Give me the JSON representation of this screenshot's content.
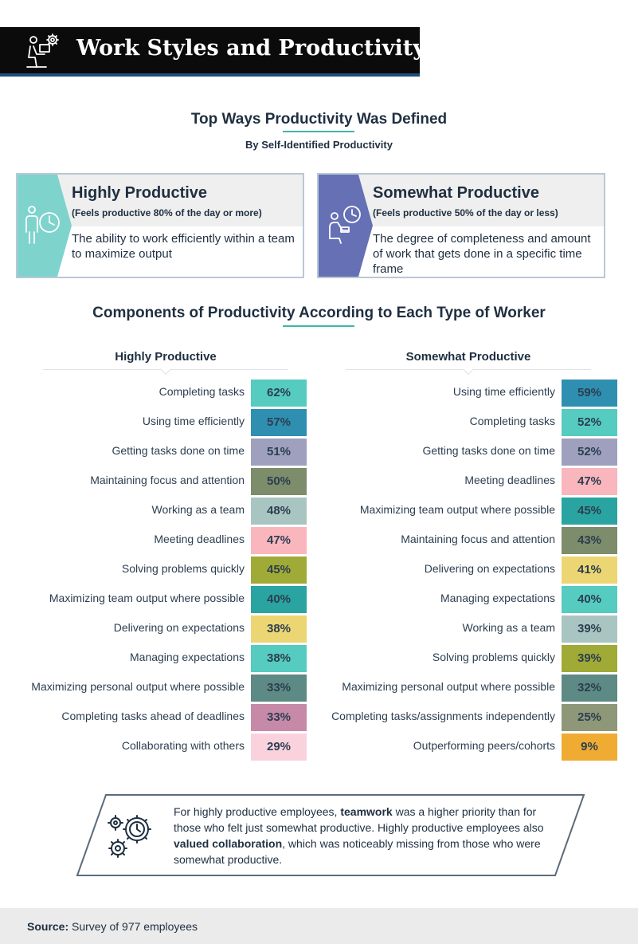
{
  "header": {
    "title": "Work Styles and Productivity"
  },
  "defined": {
    "title": "Top Ways Productivity Was Defined",
    "subtitle": "By Self-Identified Productivity",
    "cards": [
      {
        "title": "Highly Productive",
        "sub": "(Feels productive 80% of the day or more)",
        "desc": "The ability to work efficiently within a team to maximize output",
        "accent": "#7fd3cd"
      },
      {
        "title": "Somewhat Productive",
        "sub": "(Feels productive 50% of the day or less)",
        "desc": "The degree of completeness and amount of work that gets done in a specific time frame",
        "accent": "#6670b5"
      }
    ]
  },
  "components": {
    "title": "Components of Productivity According to Each Type of Worker"
  },
  "chart_data": [
    {
      "type": "bar",
      "title": "Highly Productive",
      "unit": "%",
      "categories": [
        "Completing tasks",
        "Using time efficiently",
        "Getting tasks done on time",
        "Maintaining focus and attention",
        "Working as a team",
        "Meeting deadlines",
        "Solving problems quickly",
        "Maximizing team output where possible",
        "Delivering on expectations",
        "Managing expectations",
        "Maximizing personal output where possible",
        "Completing tasks ahead of deadlines",
        "Collaborating with others"
      ],
      "values": [
        62,
        57,
        51,
        50,
        48,
        47,
        45,
        40,
        38,
        38,
        33,
        33,
        29
      ],
      "labels": [
        "62%",
        "57%",
        "51%",
        "50%",
        "48%",
        "47%",
        "45%",
        "40%",
        "38%",
        "38%",
        "33%",
        "33%",
        "29%"
      ],
      "colors": [
        "#56cbc0",
        "#2f8fb1",
        "#9ea0bd",
        "#7d8c6a",
        "#a9c5c1",
        "#f9b6bd",
        "#a0aa36",
        "#2aa4a1",
        "#ecd673",
        "#56cbc0",
        "#5d8a84",
        "#c68aa8",
        "#fad2dd"
      ]
    },
    {
      "type": "bar",
      "title": "Somewhat Productive",
      "unit": "%",
      "categories": [
        "Using time efficiently",
        "Completing tasks",
        "Getting tasks done on time",
        "Meeting deadlines",
        "Maximizing team output where possible",
        "Maintaining focus and attention",
        "Delivering on expectations",
        "Managing expectations",
        "Working as a team",
        "Solving problems quickly",
        "Maximizing personal output where possible",
        "Completing tasks/assignments independently",
        "Outperforming peers/cohorts"
      ],
      "values": [
        59,
        52,
        52,
        47,
        45,
        43,
        41,
        40,
        39,
        39,
        32,
        25,
        9
      ],
      "labels": [
        "59%",
        "52%",
        "52%",
        "47%",
        "45%",
        "43%",
        "41%",
        "40%",
        "39%",
        "39%",
        "32%",
        "25%",
        "9%"
      ],
      "colors": [
        "#2f8fb1",
        "#56cbc0",
        "#9ea0bd",
        "#f9b6bd",
        "#2aa4a1",
        "#7d8c6a",
        "#ecd673",
        "#56cbc0",
        "#a9c5c1",
        "#a0aa36",
        "#5d8a84",
        "#8e9878",
        "#f0ab32"
      ]
    }
  ],
  "callout": {
    "p1": "For highly productive employees, ",
    "b1": "teamwork",
    "p2": " was a higher priority than for those who felt just somewhat productive. Highly productive employees also ",
    "b2": "valued collaboration",
    "p3": ", which was noticeably missing from those who were somewhat productive."
  },
  "footer": {
    "label": "Source:",
    "text": " Survey of 977 employees"
  }
}
